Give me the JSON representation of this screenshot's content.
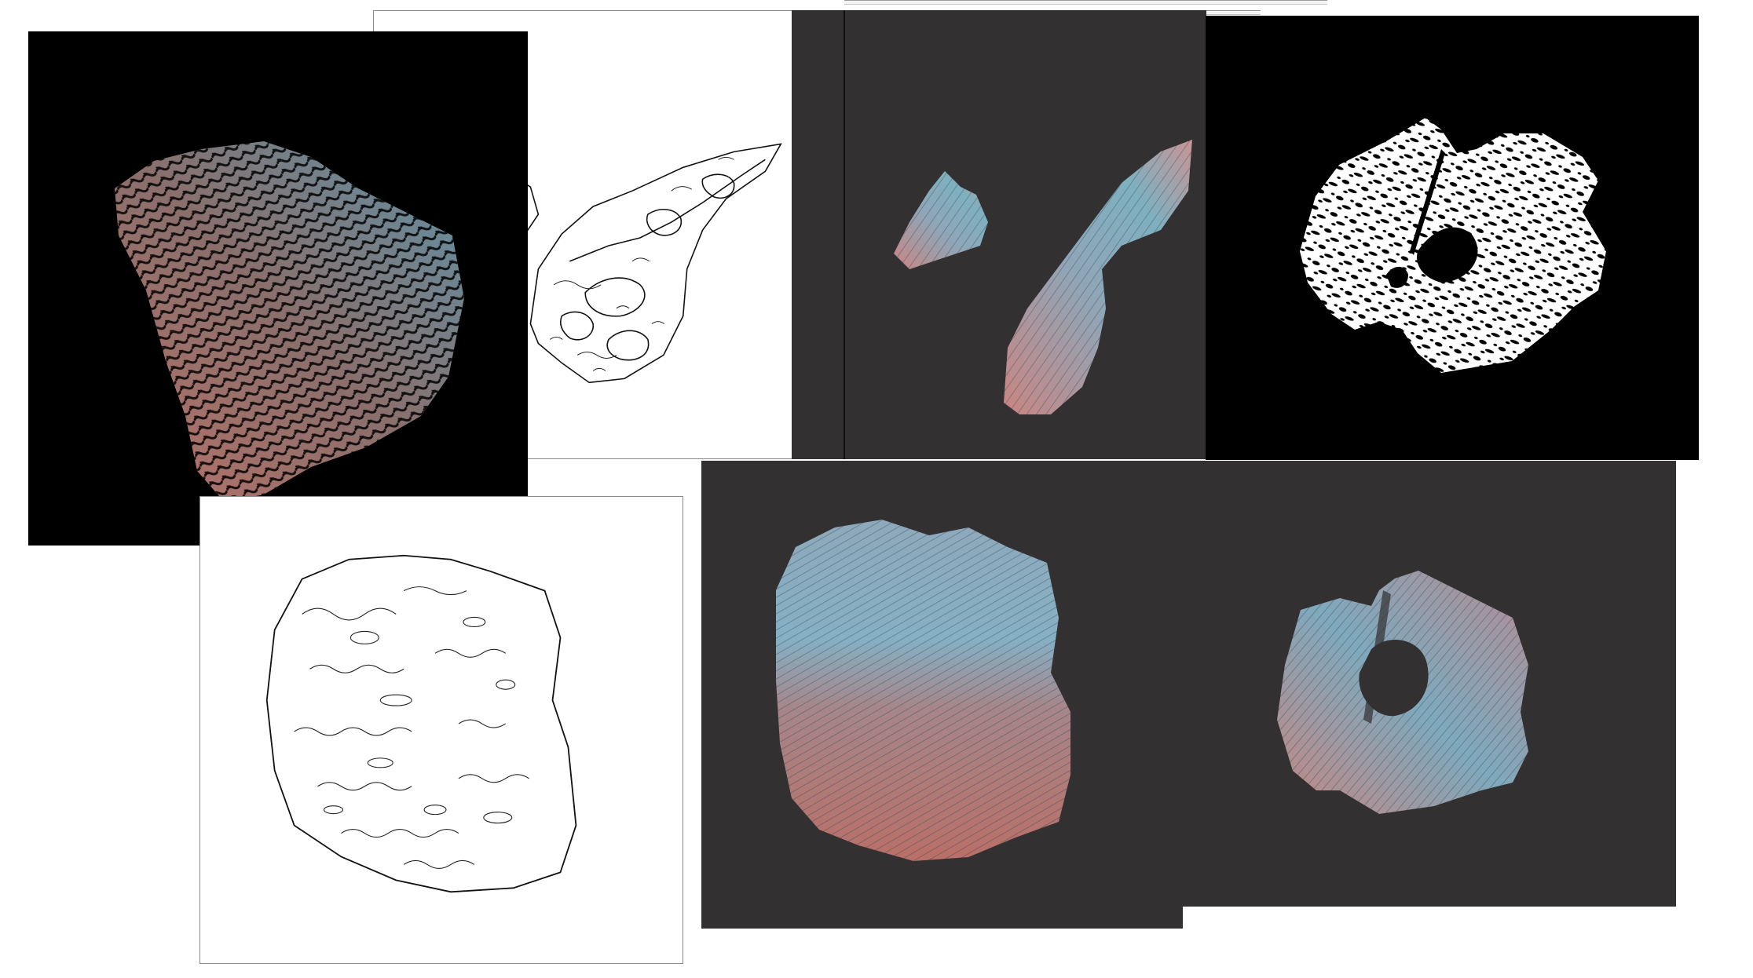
{
  "panels": [
    {
      "id": "dark-rock-shaded-mask",
      "kind": "render",
      "background": "black",
      "description_icon": "rock-render-icon"
    },
    {
      "id": "contour-lines-narrow-rock",
      "kind": "contour",
      "background": "white",
      "description_icon": "contour-icon"
    },
    {
      "id": "narrow-rock-render",
      "kind": "render",
      "background": "dark-gray",
      "description_icon": "rock-render-icon"
    },
    {
      "id": "binary-mask-rock",
      "kind": "binary",
      "background": "black",
      "description_icon": "mask-icon"
    },
    {
      "id": "contour-lines-square-rock",
      "kind": "contour",
      "background": "white",
      "description_icon": "contour-icon"
    },
    {
      "id": "square-rock-render",
      "kind": "render",
      "background": "dark-gray",
      "description_icon": "rock-render-icon"
    },
    {
      "id": "split-rock-render",
      "kind": "render",
      "background": "dark-gray",
      "description_icon": "rock-render-icon"
    }
  ],
  "colors": {
    "rock_pink": "#c9847e",
    "rock_blue": "#6fa3b5",
    "rock_dark": "#2b3b3e",
    "panel_dark": "#323031",
    "panel_black": "#000000"
  }
}
